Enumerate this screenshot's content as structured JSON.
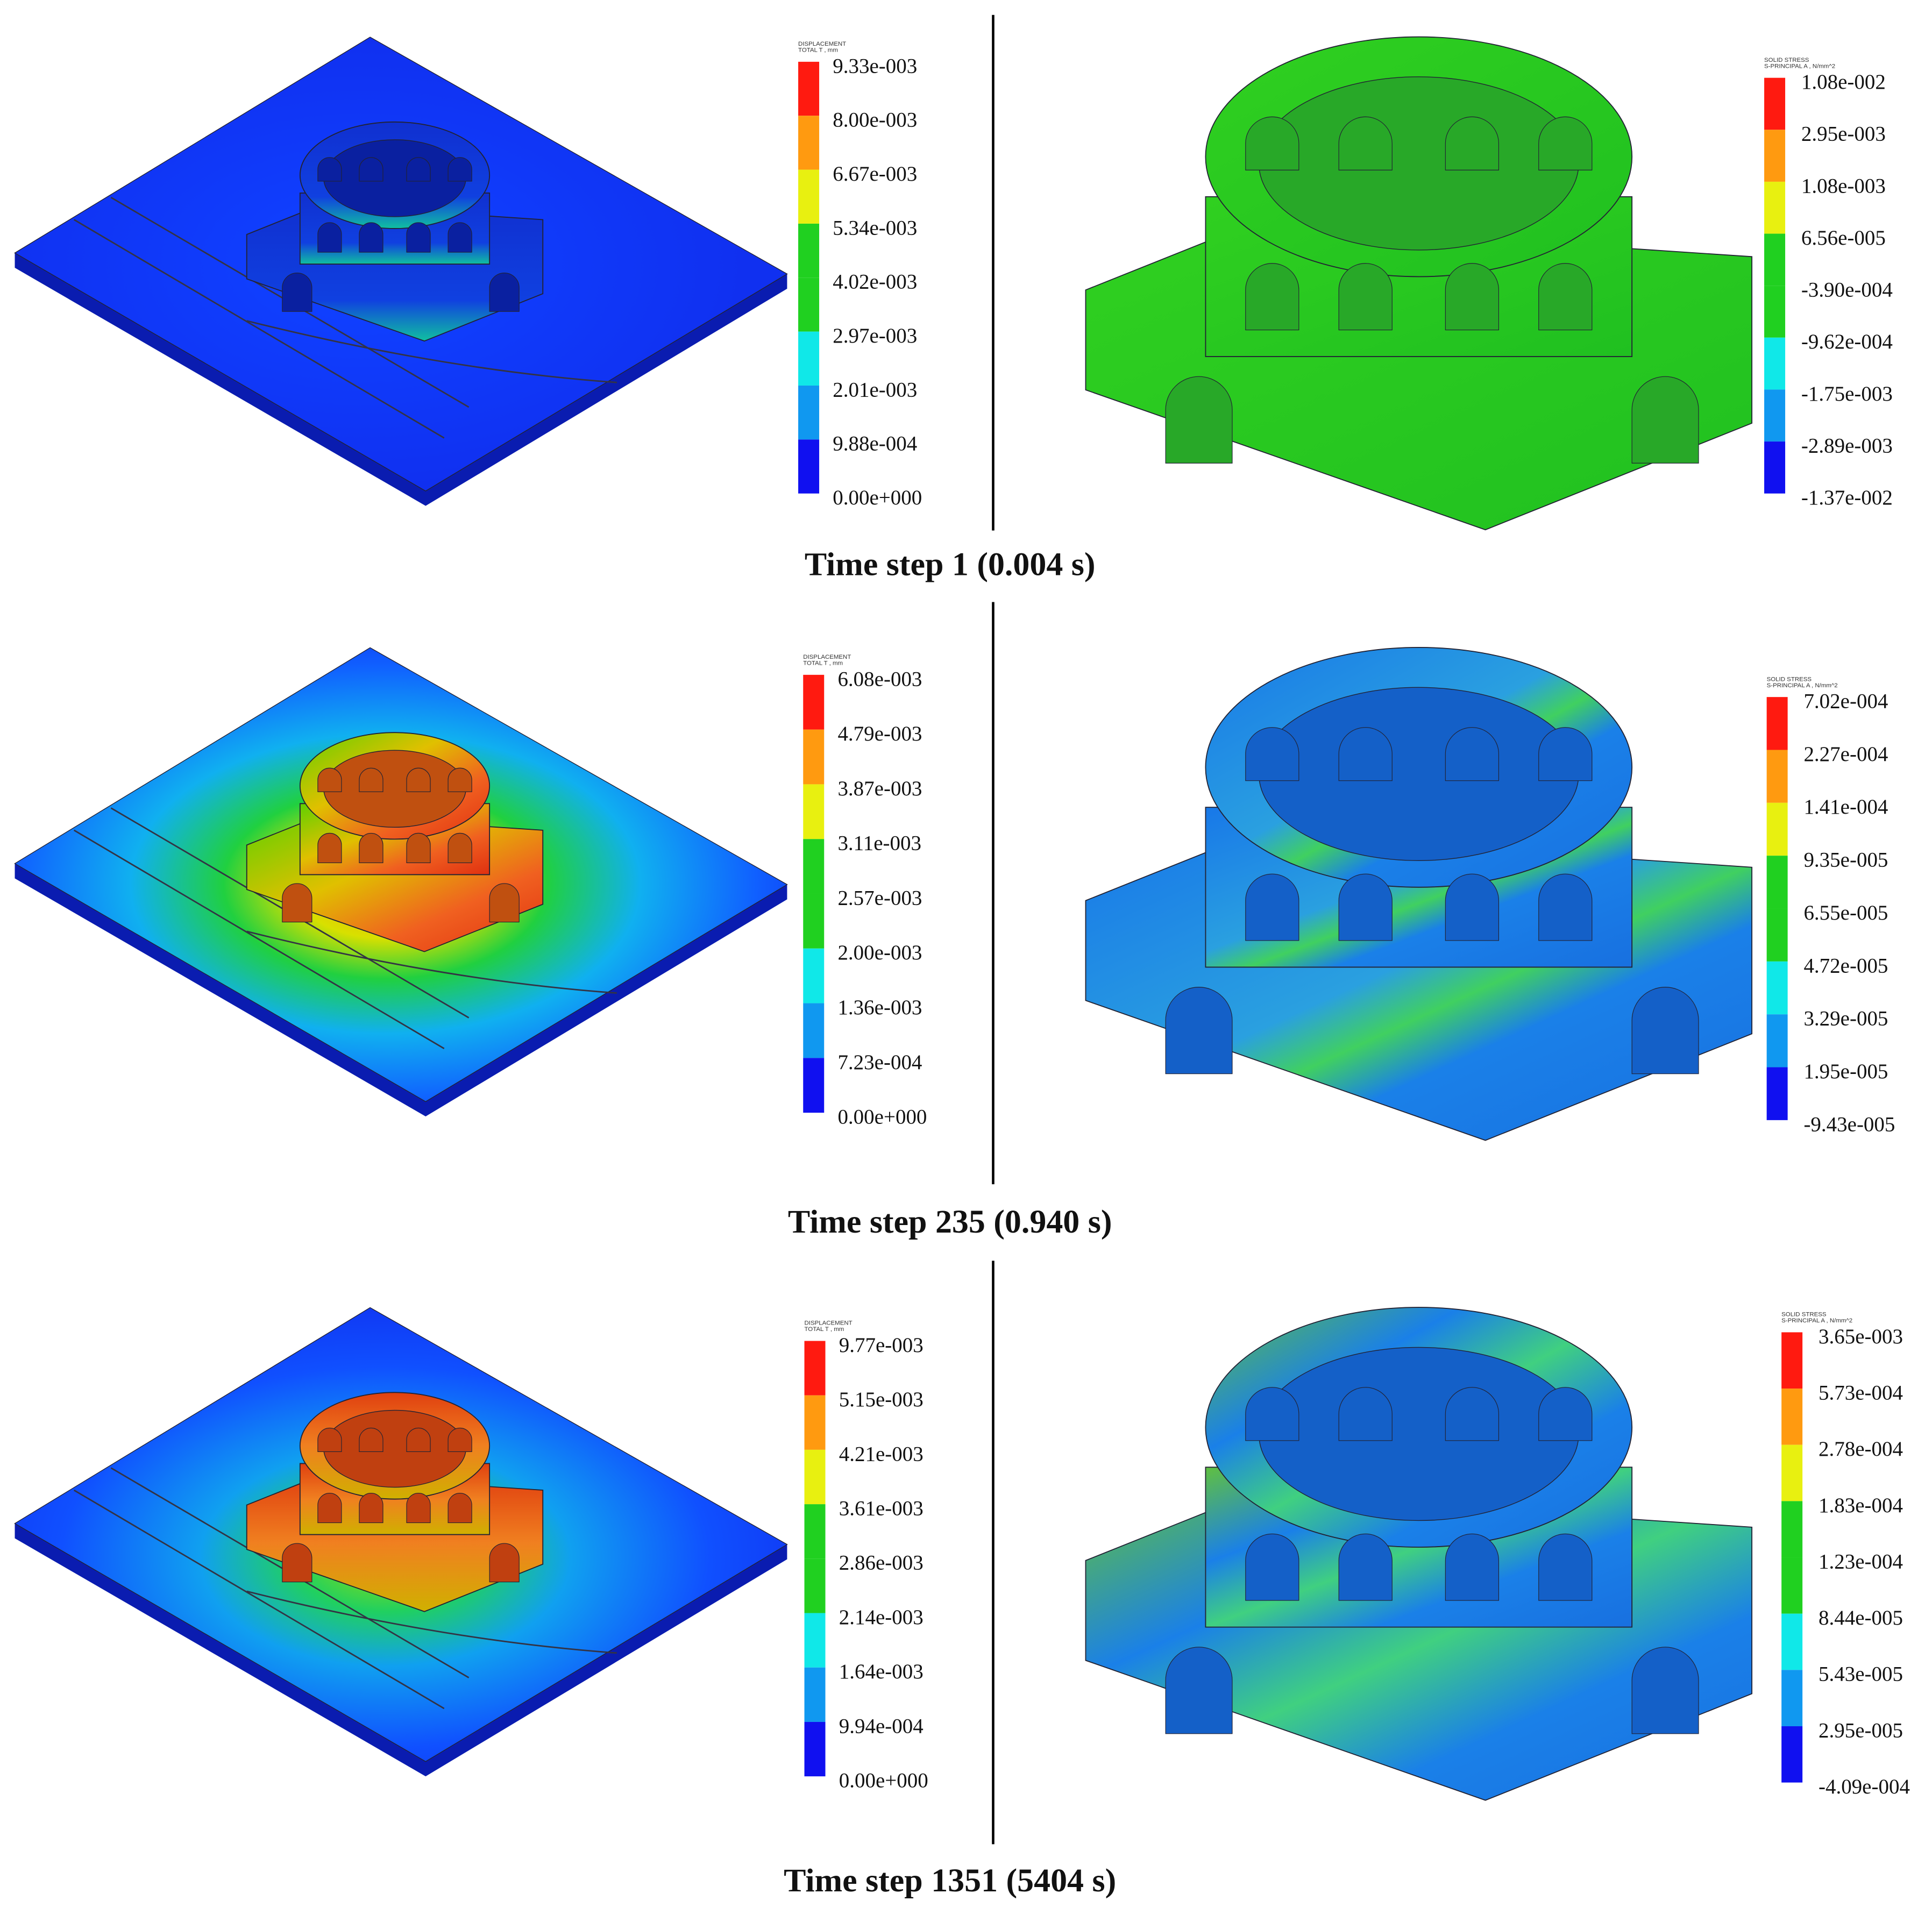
{
  "rows": [
    {
      "caption": "Time step 1 (0.004 s)",
      "displacement": {
        "header": [
          "DISPLACEMENT",
          "TOTAL T , mm"
        ],
        "labels": [
          "9.33e-003",
          "8.00e-003",
          "6.67e-003",
          "5.34e-003",
          "4.02e-003",
          "2.97e-003",
          "2.01e-003",
          "9.88e-004",
          "0.00e+000"
        ]
      },
      "stress": {
        "header": [
          "SOLID STRESS",
          "S-PRINCIPAL A , N/mm^2"
        ],
        "labels": [
          "1.08e-002",
          "2.95e-003",
          "1.08e-003",
          "6.56e-005",
          "-3.90e-004",
          "-9.62e-004",
          "-1.75e-003",
          "-2.89e-003",
          "-1.37e-002"
        ]
      }
    },
    {
      "caption": "Time step 235 (0.940 s)",
      "displacement": {
        "header": [
          "DISPLACEMENT",
          "TOTAL T , mm"
        ],
        "labels": [
          "6.08e-003",
          "4.79e-003",
          "3.87e-003",
          "3.11e-003",
          "2.57e-003",
          "2.00e-003",
          "1.36e-003",
          "7.23e-004",
          "0.00e+000"
        ]
      },
      "stress": {
        "header": [
          "SOLID STRESS",
          "S-PRINCIPAL A , N/mm^2"
        ],
        "labels": [
          "7.02e-004",
          "2.27e-004",
          "1.41e-004",
          "9.35e-005",
          "6.55e-005",
          "4.72e-005",
          "3.29e-005",
          "1.95e-005",
          "-9.43e-005"
        ]
      }
    },
    {
      "caption": "Time step 1351 (5404 s)",
      "displacement": {
        "header": [
          "DISPLACEMENT",
          "TOTAL T , mm"
        ],
        "labels": [
          "9.77e-003",
          "5.15e-003",
          "4.21e-003",
          "3.61e-003",
          "2.86e-003",
          "2.14e-003",
          "1.64e-003",
          "9.94e-004",
          "0.00e+000"
        ]
      },
      "stress": {
        "header": [
          "SOLID STRESS",
          "S-PRINCIPAL A , N/mm^2"
        ],
        "labels": [
          "3.65e-003",
          "5.73e-004",
          "2.78e-004",
          "1.83e-004",
          "1.23e-004",
          "8.44e-005",
          "5.43e-005",
          "2.95e-005",
          "-4.09e-004"
        ]
      }
    }
  ]
}
